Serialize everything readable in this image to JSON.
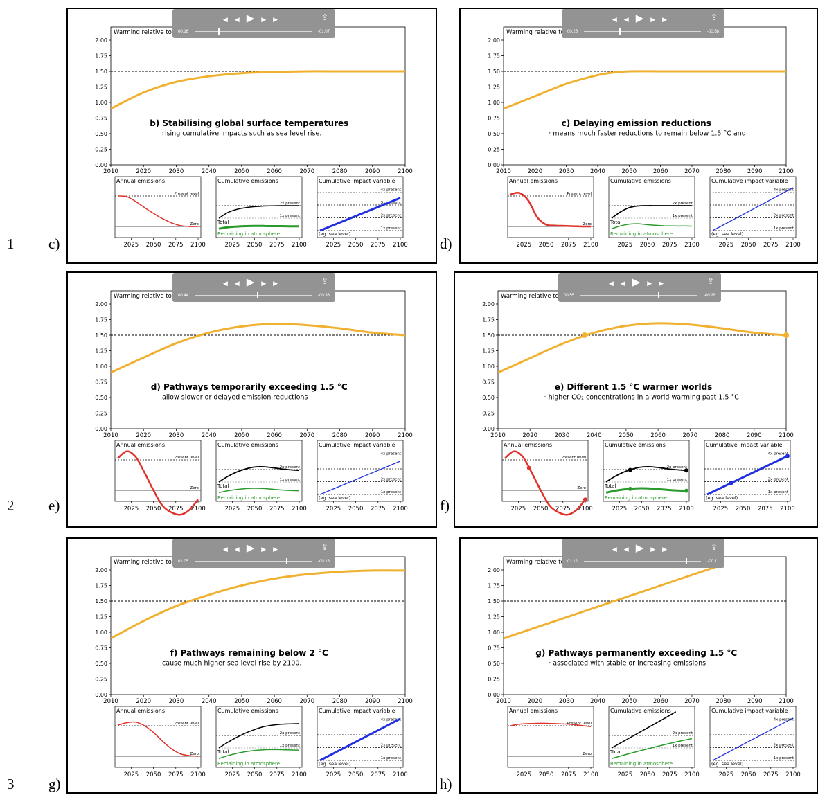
{
  "rows": [
    "1",
    "2",
    "3"
  ],
  "panels": [
    {
      "label": "c)",
      "player": {
        "elapsed": "00:16",
        "remaining": "-01:07",
        "progress": 0.2
      },
      "title": "b) Stabilising global surface temperatures",
      "subtitle": "· rising cumulative impacts such as sea level rise.",
      "markers": false
    },
    {
      "label": "d)",
      "player": {
        "elapsed": "00:25",
        "remaining": "-00:58",
        "progress": 0.3
      },
      "title": "c) Delaying emission reductions",
      "subtitle": "· means much faster reductions to remain below 1.5 °C and",
      "markers": false
    },
    {
      "label": "e)",
      "player": {
        "elapsed": "00:44",
        "remaining": "-00:38",
        "progress": 0.53
      },
      "title": "d) Pathways temporarily exceeding 1.5 °C",
      "subtitle": "· allow slower or delayed emission reductions",
      "markers": false
    },
    {
      "label": "f)",
      "player": {
        "elapsed": "00:55",
        "remaining": "-00:28",
        "progress": 0.66
      },
      "title": "e) Different 1.5 °C warmer worlds",
      "subtitle": "· higher CO₂ concentrations in a world warming past 1.5 °C",
      "markers": true
    },
    {
      "label": "g)",
      "player": {
        "elapsed": "01:05",
        "remaining": "-00:18",
        "progress": 0.78
      },
      "title": "f) Pathways remaining below 2 °C",
      "subtitle": "· cause much higher sea level rise by 2100.",
      "markers": false
    },
    {
      "label": "h)",
      "player": {
        "elapsed": "01:12",
        "remaining": "-00:11",
        "progress": 0.87
      },
      "title": "g) Pathways permanently exceeding 1.5 °C",
      "subtitle": "· associated with stable or increasing emissions",
      "markers": false
    }
  ],
  "common": {
    "main_ylabel": "Warming relative to pre-industrial (°C)",
    "annual_title": "Annual emissions",
    "cumulative_title": "Cumulative emissions",
    "impact_title": "Cumulative impact variable",
    "present_level": "Present level",
    "zero": "Zero",
    "total": "Total",
    "remaining": "Remaining in atmosphere",
    "eg_sea_level": "(eg. sea level)",
    "x2present": "2x present",
    "x1present": "1x present",
    "x3present": "3x present",
    "x4present": "4x present"
  },
  "chart_data": [
    {
      "type": "line",
      "panel": "c)",
      "ylabel": "Warming relative to pre-industrial (°C)",
      "xlim": [
        2010,
        2100
      ],
      "ylim": [
        0,
        2.0
      ],
      "xticks": [
        2010,
        2020,
        2030,
        2040,
        2050,
        2060,
        2070,
        2080,
        2090,
        2100
      ],
      "yticks": [
        "0.00",
        "0.25",
        "0.50",
        "0.75",
        "1.00",
        "1.25",
        "1.50",
        "1.75",
        "2.00"
      ],
      "reference_line": 1.5,
      "x": [
        2010,
        2020,
        2030,
        2040,
        2050,
        2060,
        2070,
        2080,
        2090,
        2100
      ],
      "series": [
        {
          "values": [
            0.9,
            1.16,
            1.33,
            1.42,
            1.47,
            1.49,
            1.5,
            1.5,
            1.5,
            1.5
          ],
          "color": "#f0b030"
        }
      ],
      "subplots": {
        "xticks": [
          2025,
          2050,
          2075,
          2100
        ],
        "annual": {
          "x": [
            2010,
            2020,
            2030,
            2040,
            2050,
            2060,
            2070,
            2080,
            2090,
            2100
          ],
          "values": [
            1.0,
            0.98,
            0.82,
            0.62,
            0.43,
            0.26,
            0.12,
            0.03,
            0.0,
            0.0
          ]
        },
        "cumulative_total": {
          "x": [
            2010,
            2020,
            2030,
            2040,
            2050,
            2060,
            2070,
            2080,
            2090,
            2100
          ],
          "values": [
            1.0,
            1.45,
            1.7,
            1.84,
            1.92,
            1.97,
            1.99,
            2.0,
            2.0,
            2.0
          ]
        },
        "cumulative_remaining": {
          "x": [
            2010,
            2020,
            2030,
            2040,
            2050,
            2060,
            2070,
            2080,
            2090,
            2100
          ],
          "values": [
            0.15,
            0.27,
            0.33,
            0.36,
            0.37,
            0.37,
            0.36,
            0.36,
            0.35,
            0.35
          ]
        },
        "impact": {
          "x": [
            2010,
            2100
          ],
          "values": [
            1.0,
            3.55
          ]
        }
      }
    },
    {
      "type": "line",
      "panel": "d)",
      "ylabel": "Warming relative to pre-industrial (°C)",
      "xlim": [
        2010,
        2100
      ],
      "ylim": [
        0,
        2.0
      ],
      "xticks": [
        2010,
        2020,
        2030,
        2040,
        2050,
        2060,
        2070,
        2080,
        2090,
        2100
      ],
      "yticks": [
        "0.00",
        "0.25",
        "0.50",
        "0.75",
        "1.00",
        "1.25",
        "1.50",
        "1.75",
        "2.00"
      ],
      "reference_line": 1.5,
      "x": [
        2010,
        2020,
        2030,
        2040,
        2045,
        2050,
        2060,
        2070,
        2080,
        2090,
        2100
      ],
      "series": [
        {
          "values": [
            0.9,
            1.1,
            1.3,
            1.44,
            1.48,
            1.5,
            1.5,
            1.5,
            1.5,
            1.5,
            1.5
          ],
          "color": "#f0b030"
        }
      ],
      "subplots": {
        "xticks": [
          2025,
          2050,
          2075,
          2100
        ],
        "annual": {
          "x": [
            2010,
            2020,
            2030,
            2040,
            2050,
            2060,
            2070,
            2080,
            2090,
            2100
          ],
          "values": [
            1.05,
            1.1,
            0.85,
            0.3,
            0.06,
            0.03,
            0.02,
            0.01,
            0.0,
            0.0
          ]
        },
        "cumulative_total": {
          "x": [
            2010,
            2020,
            2030,
            2040,
            2050,
            2060,
            2070,
            2080,
            2090,
            2100
          ],
          "values": [
            1.0,
            1.5,
            1.85,
            1.98,
            2.0,
            2.0,
            2.0,
            2.0,
            2.0,
            2.0
          ]
        },
        "cumulative_remaining": {
          "x": [
            2010,
            2020,
            2030,
            2040,
            2050,
            2060,
            2070,
            2080,
            2090,
            2100
          ],
          "values": [
            0.15,
            0.38,
            0.52,
            0.55,
            0.48,
            0.42,
            0.38,
            0.37,
            0.37,
            0.36
          ]
        },
        "impact": {
          "x": [
            2010,
            2100
          ],
          "values": [
            1.0,
            4.35
          ]
        }
      }
    },
    {
      "type": "line",
      "panel": "e)",
      "ylabel": "Warming relative to pre-industrial (°C)",
      "xlim": [
        2010,
        2100
      ],
      "ylim": [
        0,
        2.0
      ],
      "xticks": [
        2010,
        2020,
        2030,
        2040,
        2050,
        2060,
        2070,
        2080,
        2090,
        2100
      ],
      "yticks": [
        "0.00",
        "0.25",
        "0.50",
        "0.75",
        "1.00",
        "1.25",
        "1.50",
        "1.75",
        "2.00"
      ],
      "reference_line": 1.5,
      "x": [
        2010,
        2020,
        2030,
        2040,
        2050,
        2060,
        2070,
        2080,
        2090,
        2100
      ],
      "series": [
        {
          "values": [
            0.9,
            1.14,
            1.37,
            1.54,
            1.64,
            1.68,
            1.66,
            1.61,
            1.54,
            1.5
          ],
          "color": "#f0b030"
        }
      ],
      "subplots": {
        "xticks": [
          2025,
          2050,
          2075,
          2100
        ],
        "annual": {
          "x": [
            2010,
            2020,
            2030,
            2040,
            2050,
            2060,
            2070,
            2080,
            2090,
            2100
          ],
          "values": [
            1.05,
            1.28,
            1.1,
            0.58,
            0.0,
            -0.5,
            -0.72,
            -0.8,
            -0.65,
            -0.3
          ]
        },
        "cumulative_total": {
          "x": [
            2010,
            2020,
            2030,
            2040,
            2050,
            2060,
            2070,
            2080,
            2090,
            2100
          ],
          "values": [
            1.0,
            1.45,
            1.8,
            2.05,
            2.2,
            2.22,
            2.15,
            2.05,
            1.98,
            1.93
          ]
        },
        "cumulative_remaining": {
          "x": [
            2010,
            2020,
            2030,
            2040,
            2050,
            2060,
            2070,
            2080,
            2090,
            2100
          ],
          "values": [
            0.15,
            0.3,
            0.4,
            0.47,
            0.5,
            0.48,
            0.42,
            0.36,
            0.32,
            0.3
          ]
        },
        "impact": {
          "x": [
            2010,
            2100
          ],
          "values": [
            1.0,
            3.6
          ]
        }
      }
    },
    {
      "type": "line",
      "panel": "f)",
      "ylabel": "Warming relative to pre-industrial (°C)",
      "xlim": [
        2010,
        2100
      ],
      "ylim": [
        0,
        2.0
      ],
      "xticks": [
        2010,
        2020,
        2030,
        2040,
        2050,
        2060,
        2070,
        2080,
        2090,
        2100
      ],
      "yticks": [
        "0.00",
        "0.25",
        "0.50",
        "0.75",
        "1.00",
        "1.25",
        "1.50",
        "1.75",
        "2.00"
      ],
      "reference_line": 1.5,
      "x": [
        2010,
        2020,
        2030,
        2040,
        2050,
        2060,
        2070,
        2080,
        2090,
        2100
      ],
      "series": [
        {
          "values": [
            0.9,
            1.13,
            1.36,
            1.54,
            1.65,
            1.69,
            1.67,
            1.61,
            1.54,
            1.5
          ],
          "color": "#f0b030"
        }
      ],
      "markers": [
        {
          "x": 2037,
          "y": 1.5
        },
        {
          "x": 2100,
          "y": 1.5
        }
      ],
      "subplots": {
        "xticks": [
          2025,
          2050,
          2075,
          2100
        ],
        "annual": {
          "x": [
            2010,
            2020,
            2030,
            2040,
            2050,
            2060,
            2070,
            2080,
            2090,
            2100
          ],
          "values": [
            1.05,
            1.28,
            1.1,
            0.58,
            0.0,
            -0.5,
            -0.72,
            -0.8,
            -0.65,
            -0.3
          ],
          "markers": [
            2037,
            2100
          ]
        },
        "cumulative_total": {
          "x": [
            2010,
            2020,
            2030,
            2040,
            2050,
            2060,
            2070,
            2080,
            2090,
            2100
          ],
          "values": [
            1.0,
            1.45,
            1.8,
            2.05,
            2.2,
            2.22,
            2.15,
            2.05,
            1.98,
            1.93
          ],
          "markers": [
            2037,
            2100
          ]
        },
        "cumulative_remaining": {
          "x": [
            2010,
            2020,
            2030,
            2040,
            2050,
            2060,
            2070,
            2080,
            2090,
            2100
          ],
          "values": [
            0.15,
            0.3,
            0.4,
            0.47,
            0.5,
            0.48,
            0.42,
            0.36,
            0.32,
            0.3
          ],
          "markers": [
            2037,
            2100
          ]
        },
        "impact": {
          "x": [
            2010,
            2100
          ],
          "values": [
            1.0,
            4.0
          ],
          "markers": [
            2037,
            2100
          ]
        }
      }
    },
    {
      "type": "line",
      "panel": "g)",
      "ylabel": "Warming relative to pre-industrial (°C)",
      "xlim": [
        2010,
        2100
      ],
      "ylim": [
        0,
        2.0
      ],
      "xticks": [
        2010,
        2020,
        2030,
        2040,
        2050,
        2060,
        2070,
        2080,
        2090,
        2100
      ],
      "yticks": [
        "0.00",
        "0.25",
        "0.50",
        "0.75",
        "1.00",
        "1.25",
        "1.50",
        "1.75",
        "2.00"
      ],
      "reference_line": 1.5,
      "x": [
        2010,
        2020,
        2030,
        2040,
        2050,
        2060,
        2070,
        2080,
        2090,
        2100
      ],
      "series": [
        {
          "values": [
            0.9,
            1.18,
            1.42,
            1.6,
            1.75,
            1.86,
            1.93,
            1.97,
            1.99,
            1.99
          ],
          "color": "#f0b030"
        }
      ],
      "subplots": {
        "xticks": [
          2025,
          2050,
          2075,
          2100
        ],
        "annual": {
          "x": [
            2010,
            2020,
            2030,
            2040,
            2050,
            2060,
            2070,
            2080,
            2090,
            2100
          ],
          "values": [
            1.02,
            1.1,
            1.12,
            1.0,
            0.78,
            0.5,
            0.25,
            0.08,
            0.02,
            0.0
          ]
        },
        "cumulative_total": {
          "x": [
            2010,
            2020,
            2030,
            2040,
            2050,
            2060,
            2070,
            2080,
            2090,
            2100
          ],
          "values": [
            1.0,
            1.45,
            1.85,
            2.2,
            2.48,
            2.7,
            2.83,
            2.9,
            2.93,
            2.95
          ]
        },
        "cumulative_remaining": {
          "x": [
            2010,
            2020,
            2030,
            2040,
            2050,
            2060,
            2070,
            2080,
            2090,
            2100
          ],
          "values": [
            0.15,
            0.38,
            0.56,
            0.7,
            0.8,
            0.85,
            0.87,
            0.86,
            0.84,
            0.82
          ]
        },
        "impact": {
          "x": [
            2010,
            2100
          ],
          "values": [
            1.0,
            4.25
          ]
        }
      }
    },
    {
      "type": "line",
      "panel": "h)",
      "ylabel": "Warming relative to pre-industrial (°C)",
      "xlim": [
        2010,
        2100
      ],
      "ylim": [
        0,
        2.0
      ],
      "xticks": [
        2010,
        2020,
        2030,
        2040,
        2050,
        2060,
        2070,
        2080,
        2090,
        2100
      ],
      "yticks": [
        "0.00",
        "0.25",
        "0.50",
        "0.75",
        "1.00",
        "1.25",
        "1.50",
        "1.75",
        "2.00"
      ],
      "reference_line": 1.5,
      "x": [
        2010,
        2020,
        2030,
        2040,
        2050,
        2060,
        2070,
        2080
      ],
      "series": [
        {
          "values": [
            0.9,
            1.07,
            1.24,
            1.41,
            1.58,
            1.75,
            1.92,
            2.09
          ],
          "color": "#f0b030"
        }
      ],
      "subplots": {
        "xticks": [
          2025,
          2050,
          2075,
          2100
        ],
        "annual": {
          "x": [
            2010,
            2020,
            2030,
            2040,
            2050,
            2060,
            2070,
            2080,
            2090,
            2100
          ],
          "values": [
            1.0,
            1.05,
            1.07,
            1.08,
            1.08,
            1.07,
            1.06,
            1.04,
            1.01,
            0.97
          ]
        },
        "cumulative_total": {
          "x": [
            2010,
            2030,
            2050,
            2070,
            2082
          ],
          "values": [
            1.0,
            1.8,
            2.6,
            3.4,
            3.9
          ]
        },
        "cumulative_remaining": {
          "x": [
            2010,
            2030,
            2050,
            2070,
            2090,
            2100
          ],
          "values": [
            0.15,
            0.55,
            0.92,
            1.28,
            1.6,
            1.75
          ]
        },
        "impact": {
          "x": [
            2010,
            2100
          ],
          "values": [
            1.0,
            4.3
          ]
        }
      }
    }
  ]
}
